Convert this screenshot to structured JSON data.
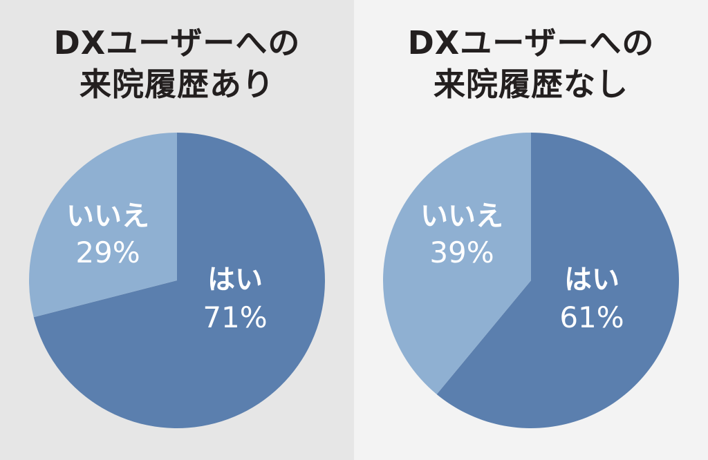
{
  "chart_data": [
    {
      "type": "pie",
      "title": "DXユーザーへの\n来院履歴あり",
      "title_lines": [
        "DXユーザーへの",
        "来院履歴あり"
      ],
      "slices": [
        {
          "label": "はい",
          "value": 71,
          "value_label": "71%",
          "color": "#5b7fae"
        },
        {
          "label": "いいえ",
          "value": 29,
          "value_label": "29%",
          "color": "#8fb0d2"
        }
      ],
      "legend": "none"
    },
    {
      "type": "pie",
      "title": "DXユーザーへの\n来院履歴なし",
      "title_lines": [
        "DXユーザーへの",
        "来院履歴なし"
      ],
      "slices": [
        {
          "label": "はい",
          "value": 61,
          "value_label": "61%",
          "color": "#5b7fae"
        },
        {
          "label": "いいえ",
          "value": 39,
          "value_label": "39%",
          "color": "#8fb0d2"
        }
      ],
      "legend": "none"
    }
  ],
  "colors": {
    "left_background": "#e6e6e6",
    "right_background": "#f3f3f3",
    "title_text": "#231f1f",
    "label_text": "#ffffff"
  }
}
